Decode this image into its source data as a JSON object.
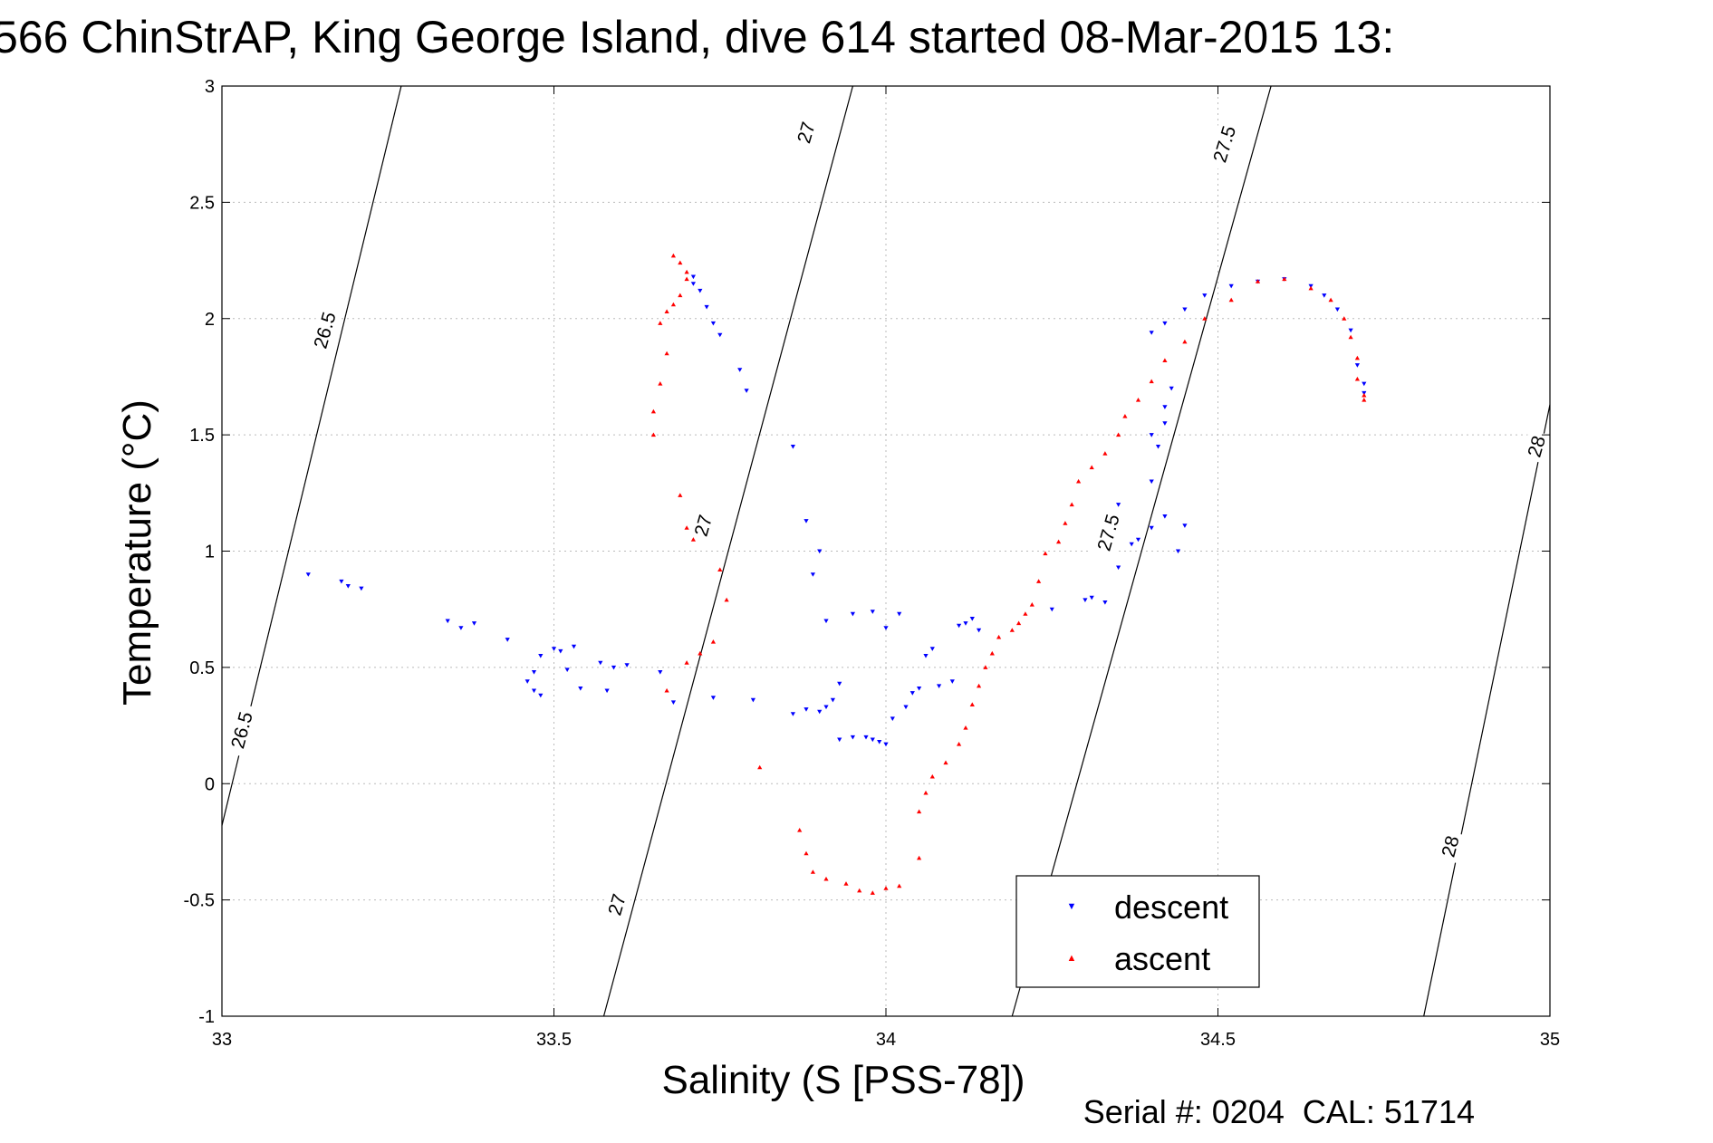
{
  "chart_data": {
    "type": "scatter",
    "title": "566 ChinStrAP, King George Island, dive 614 started 08-Mar-2015 13:",
    "xlabel": "Salinity (S [PSS-78])",
    "ylabel": "Temperature (°C)",
    "footer": "Serial #: 0204  CAL: 51714",
    "xlim": [
      33,
      35
    ],
    "ylim": [
      -1,
      3
    ],
    "xticks": [
      "33",
      "33.5",
      "34",
      "34.5",
      "35"
    ],
    "yticks": [
      "-1",
      "-0.5",
      "0",
      "0.5",
      "1",
      "1.5",
      "2",
      "2.5",
      "3"
    ],
    "grid": true,
    "legend_position": "lower-right",
    "isopycnals": [
      {
        "label": "26.5",
        "points": [
          [
            33.0,
            -0.18
          ],
          [
            33.27,
            3.0
          ]
        ]
      },
      {
        "label": "27",
        "points": [
          [
            33.575,
            -1.0
          ],
          [
            33.95,
            3.0
          ]
        ]
      },
      {
        "label": "27.5",
        "points": [
          [
            34.19,
            -1.0
          ],
          [
            34.58,
            3.0
          ]
        ]
      },
      {
        "label": "28",
        "points": [
          [
            34.81,
            -1.0
          ],
          [
            35.0,
            1.63
          ]
        ]
      }
    ],
    "contour_labels": [
      {
        "text": "26.5",
        "x": 33.155,
        "y": 1.95,
        "angle": -74
      },
      {
        "text": "26.5",
        "x": 33.03,
        "y": 0.23,
        "angle": -75
      },
      {
        "text": "27",
        "x": 33.88,
        "y": 2.8,
        "angle": -74
      },
      {
        "text": "27",
        "x": 33.725,
        "y": 1.11,
        "angle": -74
      },
      {
        "text": "27",
        "x": 33.595,
        "y": -0.52,
        "angle": -74
      },
      {
        "text": "27.5",
        "x": 34.51,
        "y": 2.75,
        "angle": -73
      },
      {
        "text": "27.5",
        "x": 34.335,
        "y": 1.08,
        "angle": -74
      },
      {
        "text": "28",
        "x": 34.98,
        "y": 1.45,
        "angle": -74
      },
      {
        "text": "28",
        "x": 34.85,
        "y": -0.27,
        "angle": -75
      }
    ],
    "series": [
      {
        "name": "descent",
        "color": "#0000ff",
        "marker": "triangle-down",
        "points": [
          [
            33.13,
            0.9
          ],
          [
            33.18,
            0.87
          ],
          [
            33.19,
            0.85
          ],
          [
            33.21,
            0.84
          ],
          [
            33.34,
            0.7
          ],
          [
            33.36,
            0.67
          ],
          [
            33.38,
            0.69
          ],
          [
            33.43,
            0.62
          ],
          [
            33.46,
            0.44
          ],
          [
            33.47,
            0.48
          ],
          [
            33.48,
            0.55
          ],
          [
            33.47,
            0.4
          ],
          [
            33.48,
            0.38
          ],
          [
            33.5,
            0.58
          ],
          [
            33.51,
            0.57
          ],
          [
            33.53,
            0.59
          ],
          [
            33.52,
            0.49
          ],
          [
            33.54,
            0.41
          ],
          [
            33.57,
            0.52
          ],
          [
            33.58,
            0.4
          ],
          [
            33.59,
            0.5
          ],
          [
            33.61,
            0.51
          ],
          [
            33.66,
            0.48
          ],
          [
            33.68,
            0.35
          ],
          [
            33.74,
            0.37
          ],
          [
            33.8,
            0.36
          ],
          [
            33.86,
            0.3
          ],
          [
            33.88,
            0.32
          ],
          [
            33.9,
            0.31
          ],
          [
            33.91,
            0.33
          ],
          [
            33.92,
            0.36
          ],
          [
            33.93,
            0.43
          ],
          [
            33.93,
            0.19
          ],
          [
            33.95,
            0.2
          ],
          [
            33.97,
            0.2
          ],
          [
            33.98,
            0.19
          ],
          [
            33.99,
            0.18
          ],
          [
            34.0,
            0.17
          ],
          [
            34.01,
            0.28
          ],
          [
            34.03,
            0.33
          ],
          [
            34.04,
            0.39
          ],
          [
            34.05,
            0.41
          ],
          [
            34.06,
            0.55
          ],
          [
            34.07,
            0.58
          ],
          [
            34.08,
            0.42
          ],
          [
            34.1,
            0.44
          ],
          [
            34.11,
            0.68
          ],
          [
            34.12,
            0.69
          ],
          [
            34.13,
            0.71
          ],
          [
            34.14,
            0.66
          ],
          [
            33.86,
            1.45
          ],
          [
            33.88,
            1.13
          ],
          [
            33.89,
            0.9
          ],
          [
            33.9,
            1.0
          ],
          [
            33.91,
            0.7
          ],
          [
            33.95,
            0.73
          ],
          [
            33.98,
            0.74
          ],
          [
            34.0,
            0.67
          ],
          [
            34.02,
            0.73
          ],
          [
            33.75,
            1.93
          ],
          [
            33.74,
            1.98
          ],
          [
            33.73,
            2.05
          ],
          [
            33.72,
            2.12
          ],
          [
            33.71,
            2.18
          ],
          [
            33.71,
            2.15
          ],
          [
            33.78,
            1.78
          ],
          [
            33.79,
            1.69
          ],
          [
            34.25,
            0.75
          ],
          [
            34.3,
            0.79
          ],
          [
            34.31,
            0.8
          ],
          [
            34.33,
            0.78
          ],
          [
            34.35,
            0.93
          ],
          [
            34.37,
            1.03
          ],
          [
            34.4,
            1.1
          ],
          [
            34.42,
            1.15
          ],
          [
            34.4,
            1.3
          ],
          [
            34.41,
            1.45
          ],
          [
            34.42,
            1.55
          ],
          [
            34.43,
            1.7
          ],
          [
            34.42,
            1.62
          ],
          [
            34.4,
            1.5
          ],
          [
            34.45,
            1.11
          ],
          [
            34.44,
            1.0
          ],
          [
            34.35,
            1.2
          ],
          [
            34.38,
            1.05
          ],
          [
            34.4,
            1.94
          ],
          [
            34.42,
            1.98
          ],
          [
            34.45,
            2.04
          ],
          [
            34.48,
            2.1
          ],
          [
            34.52,
            2.14
          ],
          [
            34.56,
            2.16
          ],
          [
            34.6,
            2.17
          ],
          [
            34.64,
            2.14
          ],
          [
            34.66,
            2.1
          ],
          [
            34.68,
            2.04
          ],
          [
            34.7,
            1.95
          ],
          [
            34.71,
            1.8
          ],
          [
            34.72,
            1.72
          ],
          [
            34.72,
            1.68
          ]
        ]
      },
      {
        "name": "ascent",
        "color": "#ff0000",
        "marker": "triangle-up",
        "points": [
          [
            33.68,
            2.27
          ],
          [
            33.69,
            2.24
          ],
          [
            33.7,
            2.2
          ],
          [
            33.7,
            2.17
          ],
          [
            33.69,
            2.1
          ],
          [
            33.68,
            2.06
          ],
          [
            33.67,
            2.03
          ],
          [
            33.66,
            1.98
          ],
          [
            33.67,
            1.85
          ],
          [
            33.66,
            1.72
          ],
          [
            33.65,
            1.6
          ],
          [
            33.65,
            1.5
          ],
          [
            33.69,
            1.24
          ],
          [
            33.7,
            1.1
          ],
          [
            33.71,
            1.05
          ],
          [
            33.75,
            0.92
          ],
          [
            33.76,
            0.79
          ],
          [
            33.74,
            0.61
          ],
          [
            33.72,
            0.56
          ],
          [
            33.7,
            0.52
          ],
          [
            33.67,
            0.4
          ],
          [
            33.81,
            0.07
          ],
          [
            33.87,
            -0.2
          ],
          [
            33.88,
            -0.3
          ],
          [
            33.89,
            -0.38
          ],
          [
            33.91,
            -0.41
          ],
          [
            33.94,
            -0.43
          ],
          [
            33.96,
            -0.46
          ],
          [
            33.98,
            -0.47
          ],
          [
            34.0,
            -0.45
          ],
          [
            34.02,
            -0.44
          ],
          [
            34.05,
            -0.32
          ],
          [
            34.05,
            -0.12
          ],
          [
            34.06,
            -0.04
          ],
          [
            34.07,
            0.03
          ],
          [
            34.09,
            0.09
          ],
          [
            34.11,
            0.17
          ],
          [
            34.12,
            0.24
          ],
          [
            34.13,
            0.34
          ],
          [
            34.14,
            0.42
          ],
          [
            34.15,
            0.5
          ],
          [
            34.16,
            0.56
          ],
          [
            34.17,
            0.63
          ],
          [
            34.19,
            0.66
          ],
          [
            34.2,
            0.69
          ],
          [
            34.21,
            0.73
          ],
          [
            34.22,
            0.77
          ],
          [
            34.23,
            0.87
          ],
          [
            34.24,
            0.99
          ],
          [
            34.26,
            1.04
          ],
          [
            34.27,
            1.12
          ],
          [
            34.28,
            1.2
          ],
          [
            34.29,
            1.3
          ],
          [
            34.31,
            1.36
          ],
          [
            34.33,
            1.42
          ],
          [
            34.35,
            1.5
          ],
          [
            34.36,
            1.58
          ],
          [
            34.38,
            1.65
          ],
          [
            34.4,
            1.73
          ],
          [
            34.42,
            1.82
          ],
          [
            34.45,
            1.9
          ],
          [
            34.48,
            2.0
          ],
          [
            34.52,
            2.08
          ],
          [
            34.56,
            2.16
          ],
          [
            34.6,
            2.17
          ],
          [
            34.64,
            2.13
          ],
          [
            34.67,
            2.08
          ],
          [
            34.69,
            2.0
          ],
          [
            34.7,
            1.92
          ],
          [
            34.71,
            1.83
          ],
          [
            34.71,
            1.74
          ],
          [
            34.72,
            1.67
          ],
          [
            34.72,
            1.65
          ]
        ]
      }
    ]
  }
}
